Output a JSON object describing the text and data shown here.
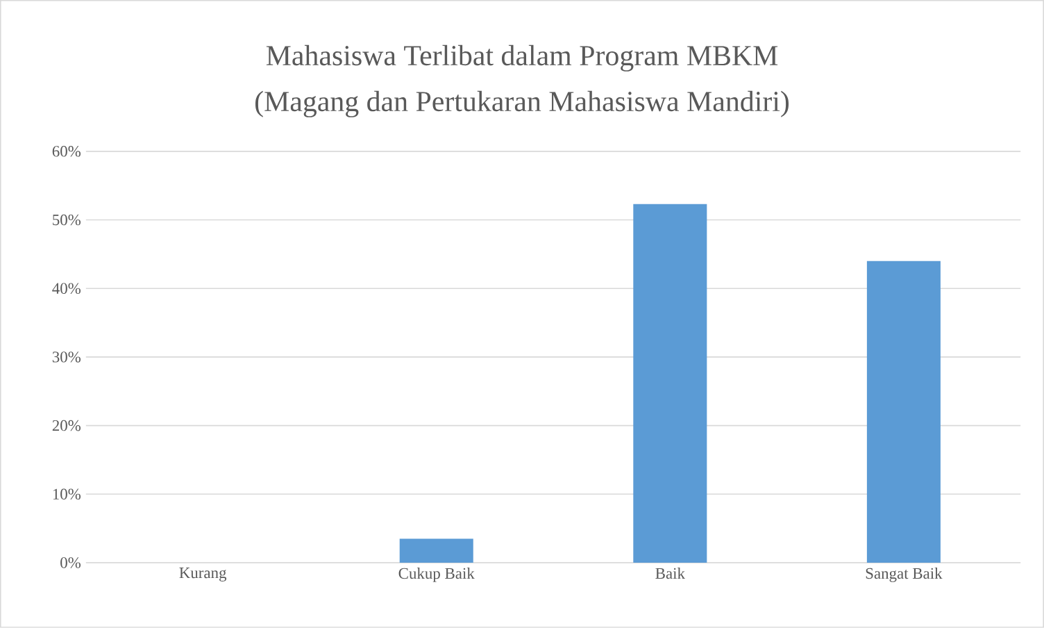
{
  "chart_data": {
    "type": "bar",
    "title": "Mahasiswa Terlibat dalam Program MBKM",
    "subtitle": "(Magang dan Pertukaran Mahasiswa Mandiri)",
    "categories": [
      "Kurang",
      "Cukup Baik",
      "Baik",
      "Sangat Baik"
    ],
    "values": [
      0,
      3.5,
      52.3,
      44.0
    ],
    "color": "#5b9bd5",
    "ylim": [
      0,
      60
    ],
    "yticks": [
      {
        "value": 0,
        "label": "0%"
      },
      {
        "value": 10,
        "label": "10%"
      },
      {
        "value": 20,
        "label": "20%"
      },
      {
        "value": 30,
        "label": "30%"
      },
      {
        "value": 40,
        "label": "40%"
      },
      {
        "value": 50,
        "label": "50%"
      },
      {
        "value": 60,
        "label": "60%"
      }
    ],
    "grid": "y"
  }
}
